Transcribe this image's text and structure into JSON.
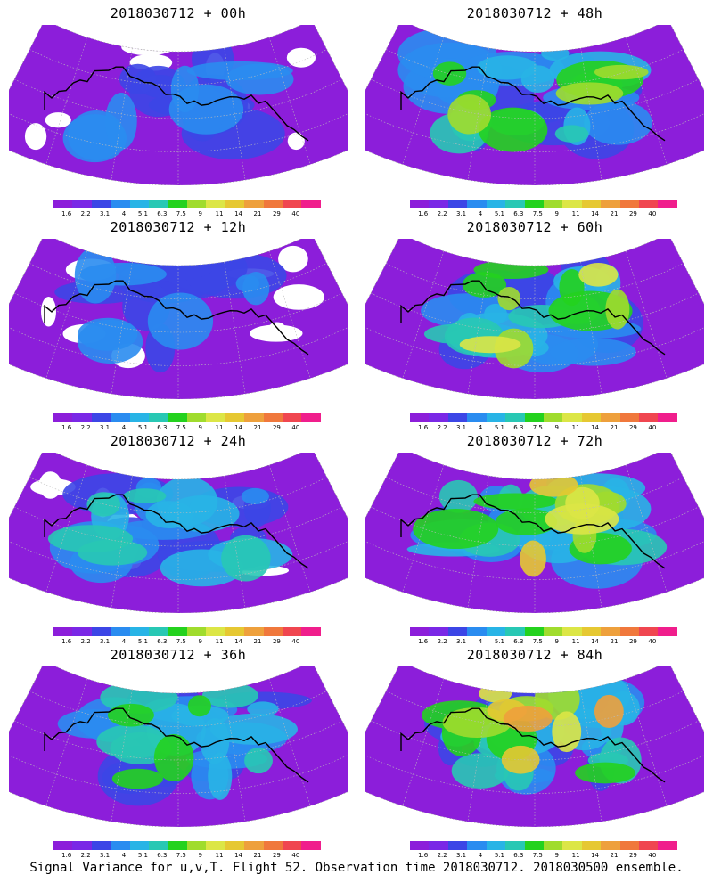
{
  "panels": [
    {
      "id": "p00",
      "title": "2018030712 + 00h",
      "intensity": 0.15
    },
    {
      "id": "p48",
      "title": "2018030712 + 48h",
      "intensity": 0.55
    },
    {
      "id": "p12",
      "title": "2018030712 + 12h",
      "intensity": 0.25
    },
    {
      "id": "p60",
      "title": "2018030712 + 60h",
      "intensity": 0.65
    },
    {
      "id": "p24",
      "title": "2018030712 + 24h",
      "intensity": 0.35
    },
    {
      "id": "p72",
      "title": "2018030712 + 72h",
      "intensity": 0.72
    },
    {
      "id": "p36",
      "title": "2018030712 + 36h",
      "intensity": 0.45
    },
    {
      "id": "p84",
      "title": "2018030712 + 84h",
      "intensity": 0.8
    }
  ],
  "colorbar": {
    "labels": [
      "1.6",
      "2.2",
      "3.1",
      "4",
      "5.1",
      "6.3",
      "7.5",
      "9",
      "11",
      "14",
      "21",
      "29",
      "40"
    ],
    "colors": [
      "#8c1eda",
      "#7a28e6",
      "#3c46e6",
      "#2a8cf0",
      "#28b4e6",
      "#28c8b4",
      "#24d21e",
      "#a0dc2d",
      "#dce646",
      "#e6c832",
      "#eea03c",
      "#f0783c",
      "#f04650",
      "#f01e8c"
    ]
  },
  "caption": "Signal Variance for u,v,T. Flight 52. Observation time 2018030712. 2018030500 ensemble."
}
